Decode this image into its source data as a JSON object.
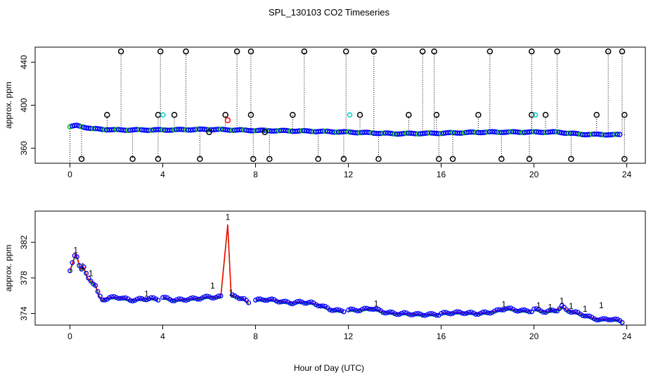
{
  "title": "SPL_130103  CO2 Timeseries",
  "xlabel": "Hour of Day (UTC)",
  "colors": {
    "series": "#0000ff",
    "secondary": "#00c000",
    "cyan": "#00d0d0",
    "flag": "#ff0000",
    "outlier": "#000000",
    "frame": "#000000"
  },
  "chart_data": [
    {
      "type": "scatter",
      "panel": "top",
      "ylabel": "approx. ppm",
      "xlim": [
        -1.5,
        24.8
      ],
      "ylim": [
        346,
        454
      ],
      "xticks": [
        0,
        4,
        8,
        12,
        16,
        20,
        24
      ],
      "yticks": [
        360,
        400,
        440
      ],
      "baseline": [
        [
          0,
          380
        ],
        [
          0.3,
          381
        ],
        [
          1,
          378
        ],
        [
          2,
          377
        ],
        [
          4,
          377
        ],
        [
          6,
          377.5
        ],
        [
          7,
          377
        ],
        [
          8,
          376.5
        ],
        [
          10,
          376
        ],
        [
          12,
          375
        ],
        [
          14,
          373.5
        ],
        [
          16,
          374
        ],
        [
          18,
          375
        ],
        [
          20,
          375
        ],
        [
          21,
          375
        ],
        [
          22,
          373
        ],
        [
          23.8,
          372.5
        ]
      ],
      "outliers": [
        {
          "x": 0.5,
          "y": 350
        },
        {
          "x": 1.6,
          "y": 391
        },
        {
          "x": 2.2,
          "y": 450
        },
        {
          "x": 2.7,
          "y": 350
        },
        {
          "x": 3.8,
          "y": 350
        },
        {
          "x": 3.8,
          "y": 391
        },
        {
          "x": 3.9,
          "y": 450
        },
        {
          "x": 4.5,
          "y": 391
        },
        {
          "x": 5.0,
          "y": 450
        },
        {
          "x": 5.6,
          "y": 350
        },
        {
          "x": 6.0,
          "y": 375
        },
        {
          "x": 6.7,
          "y": 391
        },
        {
          "x": 7.2,
          "y": 450
        },
        {
          "x": 7.8,
          "y": 450
        },
        {
          "x": 7.8,
          "y": 391
        },
        {
          "x": 7.9,
          "y": 350
        },
        {
          "x": 8.4,
          "y": 375
        },
        {
          "x": 8.6,
          "y": 350
        },
        {
          "x": 9.6,
          "y": 391
        },
        {
          "x": 10.1,
          "y": 450
        },
        {
          "x": 10.7,
          "y": 350
        },
        {
          "x": 11.8,
          "y": 350
        },
        {
          "x": 11.9,
          "y": 450
        },
        {
          "x": 12.5,
          "y": 391
        },
        {
          "x": 13.1,
          "y": 450
        },
        {
          "x": 13.3,
          "y": 350
        },
        {
          "x": 14.6,
          "y": 391
        },
        {
          "x": 15.2,
          "y": 450
        },
        {
          "x": 15.7,
          "y": 450
        },
        {
          "x": 15.8,
          "y": 391
        },
        {
          "x": 15.9,
          "y": 350
        },
        {
          "x": 16.5,
          "y": 350
        },
        {
          "x": 17.6,
          "y": 391
        },
        {
          "x": 18.1,
          "y": 450
        },
        {
          "x": 18.6,
          "y": 350
        },
        {
          "x": 19.8,
          "y": 350
        },
        {
          "x": 19.9,
          "y": 450
        },
        {
          "x": 19.9,
          "y": 391
        },
        {
          "x": 20.5,
          "y": 391
        },
        {
          "x": 21.0,
          "y": 450
        },
        {
          "x": 21.6,
          "y": 350
        },
        {
          "x": 22.7,
          "y": 391
        },
        {
          "x": 23.2,
          "y": 450
        },
        {
          "x": 23.8,
          "y": 450
        },
        {
          "x": 23.9,
          "y": 391
        },
        {
          "x": 23.9,
          "y": 350
        }
      ],
      "red_point": {
        "x": 6.8,
        "y": 386
      },
      "cyan_points": [
        {
          "x": 3.95,
          "y": 391
        },
        {
          "x": 12.0,
          "y": 391
        },
        {
          "x": 20.0,
          "y": 391
        }
      ]
    },
    {
      "type": "line",
      "panel": "bottom",
      "ylabel": "approx. ppm",
      "xlim": [
        -1.5,
        24.8
      ],
      "ylim": [
        372.7,
        385.5
      ],
      "xticks": [
        0,
        4,
        8,
        12,
        16,
        20,
        24
      ],
      "yticks": [
        374,
        378,
        382
      ],
      "flag_label": "1",
      "segments": [
        [
          [
            0,
            378.8
          ],
          [
            0.15,
            380
          ],
          [
            0.25,
            380.8
          ],
          [
            0.35,
            380
          ],
          [
            0.45,
            379
          ],
          [
            0.6,
            379.2
          ],
          [
            0.75,
            378
          ],
          [
            0.9,
            377.7
          ],
          [
            1.1,
            377.2
          ],
          [
            1.25,
            376
          ],
          [
            1.4,
            375.5
          ],
          [
            1.7,
            375.8
          ],
          [
            2.2,
            375.8
          ],
          [
            2.6,
            375.5
          ],
          [
            3.0,
            375.6
          ],
          [
            3.5,
            375.7
          ],
          [
            3.8,
            375.6
          ]
        ],
        [
          [
            4.0,
            375.8
          ],
          [
            4.5,
            375.5
          ],
          [
            5.0,
            375.6
          ],
          [
            5.5,
            375.7
          ],
          [
            5.8,
            375.8
          ],
          [
            6.0,
            375.9
          ],
          [
            6.3,
            375.8
          ],
          [
            6.5,
            375.9
          ],
          [
            6.8,
            384
          ],
          [
            6.95,
            376
          ],
          [
            7.2,
            375.9
          ],
          [
            7.5,
            375.6
          ],
          [
            7.7,
            375.2
          ]
        ],
        [
          [
            8.0,
            375.5
          ],
          [
            8.4,
            375.6
          ],
          [
            8.8,
            375.5
          ],
          [
            9.2,
            375.3
          ],
          [
            9.6,
            375.2
          ],
          [
            10.0,
            375.3
          ],
          [
            10.4,
            375.2
          ],
          [
            10.8,
            374.9
          ],
          [
            11.2,
            374.5
          ],
          [
            11.6,
            374.3
          ],
          [
            11.8,
            374.3
          ]
        ],
        [
          [
            12.0,
            374.4
          ],
          [
            12.5,
            374.4
          ],
          [
            13.0,
            374.6
          ],
          [
            13.5,
            374.2
          ],
          [
            14.0,
            374
          ],
          [
            14.5,
            374
          ],
          [
            15.0,
            373.9
          ],
          [
            15.5,
            373.9
          ],
          [
            15.9,
            373.9
          ]
        ],
        [
          [
            16.0,
            374
          ],
          [
            16.5,
            374.1
          ],
          [
            17.0,
            374.1
          ],
          [
            17.5,
            374
          ],
          [
            18.0,
            374.1
          ],
          [
            18.4,
            374.3
          ],
          [
            18.8,
            374.6
          ],
          [
            19.2,
            374.4
          ],
          [
            19.6,
            374.3
          ],
          [
            19.9,
            374.3
          ]
        ],
        [
          [
            20.0,
            374.5
          ],
          [
            20.5,
            374.2
          ],
          [
            21.0,
            374.4
          ],
          [
            21.2,
            374.8
          ],
          [
            21.4,
            374.4
          ],
          [
            21.8,
            374.1
          ],
          [
            22.2,
            373.8
          ],
          [
            22.5,
            373.5
          ],
          [
            22.9,
            373.3
          ],
          [
            23.3,
            373.4
          ],
          [
            23.7,
            373.2
          ],
          [
            23.8,
            373.1
          ]
        ]
      ],
      "flags": [
        {
          "x": 0.25,
          "y": 380.8
        },
        {
          "x": 0.55,
          "y": 379
        },
        {
          "x": 0.9,
          "y": 378.2
        },
        {
          "x": 6.15,
          "y": 376.8
        },
        {
          "x": 6.8,
          "y": 384.5
        },
        {
          "x": 6.95,
          "y": 376
        },
        {
          "x": 3.3,
          "y": 375.9
        },
        {
          "x": 13.2,
          "y": 374.8
        },
        {
          "x": 18.7,
          "y": 374.7
        },
        {
          "x": 20.2,
          "y": 374.6
        },
        {
          "x": 20.7,
          "y": 374.4
        },
        {
          "x": 21.2,
          "y": 375.1
        },
        {
          "x": 21.6,
          "y": 374.5
        },
        {
          "x": 22.2,
          "y": 374.2
        },
        {
          "x": 22.9,
          "y": 374.6
        }
      ]
    }
  ]
}
